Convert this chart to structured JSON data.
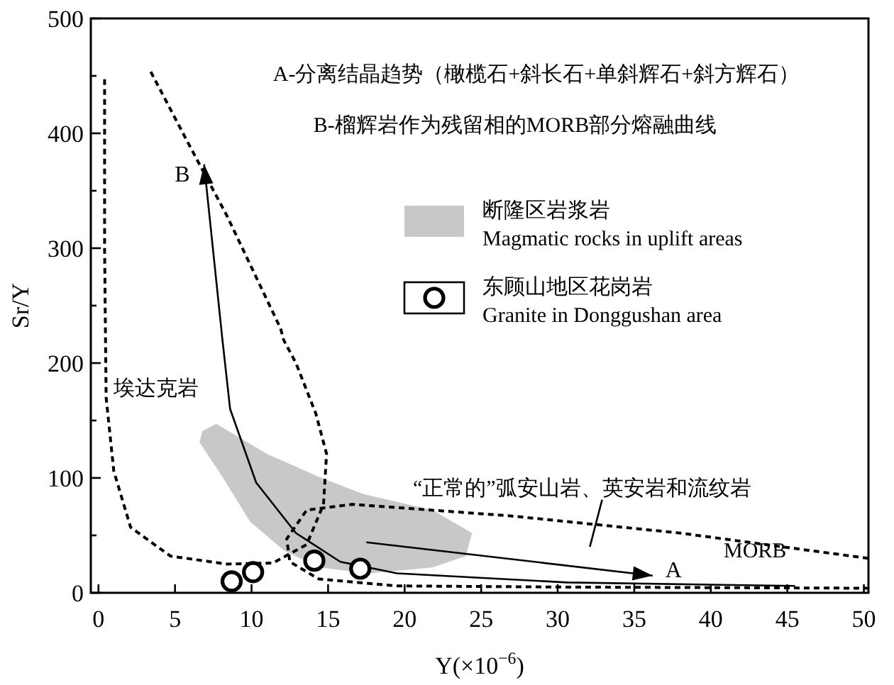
{
  "chart_data": {
    "type": "scatter",
    "xlabel": "Y(×10$^{−6}$)",
    "ylabel": "Sr/Y",
    "xlim": [
      -0.5,
      50.3
    ],
    "ylim": [
      0,
      500
    ],
    "xticks": [
      0,
      5,
      10,
      15,
      20,
      25,
      30,
      35,
      40,
      45,
      50
    ],
    "yticks": [
      0,
      {
        "value": 50,
        "label": null
      },
      100,
      {
        "value": 150,
        "label": null
      },
      200,
      {
        "value": 250,
        "label": null
      },
      300,
      {
        "value": 350,
        "label": null
      },
      400,
      {
        "value": 450,
        "label": null
      },
      500
    ],
    "grid": false,
    "legend": "right",
    "series": [
      {
        "name": "断隆区岩浆岩\nMagmatic rocks in uplift areas",
        "type": "area",
        "color": "#c8c8c8",
        "x": [
          6.8,
          7.7,
          11.0,
          14.4,
          17.3,
          21.8,
          24.4,
          24.0,
          21.8,
          17.7,
          14.4,
          12.1,
          9.9,
          8.1,
          6.6
        ],
        "values": [
          141,
          147,
          121,
          101,
          86,
          72,
          52,
          32,
          22,
          17,
          22,
          37,
          62,
          101,
          131
        ]
      },
      {
        "type": "line",
        "color": "#000000",
        "line_style": "dashed",
        "marker": "none",
        "x": [
          0.4,
          0.4,
          0.5,
          1.0,
          2.1,
          4.7,
          8.4,
          11.4,
          13.6,
          14.7,
          14.9,
          14.2,
          12.9,
          12.1,
          11.9,
          8.4,
          5.8,
          3.4
        ],
        "values": [
          447,
          300,
          170,
          106,
          57,
          32,
          25,
          26,
          42,
          77,
          121,
          156,
          200,
          220,
          230,
          328,
          393,
          454
        ]
      },
      {
        "type": "line",
        "color": "#000000",
        "line_style": "dashed",
        "marker": "none",
        "x": [
          50.3,
          38,
          26.9,
          16.6,
          13.6,
          12.3,
          12.5,
          14.4,
          19.5,
          30.6,
          50.3
        ],
        "values": [
          30,
          52,
          67,
          77,
          72,
          47,
          27,
          12,
          6,
          5,
          4
        ]
      },
      {
        "type": "line",
        "color": "#000000",
        "line_style": "solid",
        "marker": "none",
        "x": [
          45.5,
          30.6,
          19.5,
          15.8,
          12.9,
          10.3,
          8.6,
          8.1,
          6.9
        ],
        "values": [
          6,
          9,
          17,
          27,
          52,
          96,
          160,
          220,
          373
        ]
      },
      {
        "type": "line",
        "color": "#000000",
        "line_style": "solid",
        "marker": "none",
        "x": [
          17.5,
          36.2
        ],
        "values": [
          44,
          15
        ]
      },
      {
        "type": "line",
        "color": "#000000",
        "line_style": "solid",
        "marker": "none",
        "x": [
          32.9,
          32.1
        ],
        "values": [
          81,
          40
        ]
      },
      {
        "name": "东顾山地区花岗岩\nGranite in Donggushan area",
        "color": "#000000",
        "marker": "circle",
        "x": [
          8.7,
          10.1,
          14.1,
          17.1
        ],
        "values": [
          10,
          18,
          28,
          21
        ]
      }
    ],
    "annotations": [
      "A-分离结晶趋势（橄榄石+斜长石+单斜辉石+斜方辉石）",
      "B-榴辉岩作为残留相的MORB部分熔融曲线",
      {
        "text": "埃达克岩",
        "x": 1.0,
        "y": 172
      },
      "“正常的”弧安山岩、英安岩和流纹岩",
      "MORB",
      {
        "text": "A",
        "x": 36.2,
        "y": 15
      },
      {
        "text": "B",
        "x": 6.9,
        "y": 373
      }
    ]
  }
}
